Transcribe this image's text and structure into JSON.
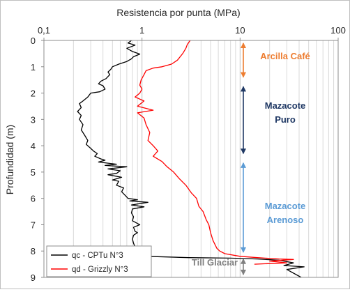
{
  "chart_data": {
    "type": "line",
    "title": "",
    "xlabel": "Resistencia por punta  (MPa)",
    "ylabel": "Profundidad  (m)",
    "x_scale": "log",
    "xlim": [
      0.1,
      100
    ],
    "ylim": [
      9,
      0
    ],
    "x_ticks": [
      "0,1",
      "1",
      "10",
      "100"
    ],
    "y_ticks": [
      "0",
      "1",
      "2",
      "3",
      "4",
      "5",
      "6",
      "7",
      "8",
      "9"
    ],
    "grid": {
      "x_minor_log": true,
      "y": false
    },
    "legend": {
      "placement": "bottom-left",
      "entries": [
        "qc - CPTu N°3",
        "qd - Grizzly N°3"
      ]
    },
    "series": [
      {
        "name": "qc - CPTu N°3",
        "color": "#000000",
        "points": [
          [
            0.78,
            0.0
          ],
          [
            0.72,
            0.1
          ],
          [
            0.85,
            0.18
          ],
          [
            0.7,
            0.3
          ],
          [
            0.8,
            0.42
          ],
          [
            0.95,
            0.52
          ],
          [
            0.82,
            0.62
          ],
          [
            0.78,
            0.7
          ],
          [
            0.7,
            0.8
          ],
          [
            0.58,
            0.9
          ],
          [
            0.5,
            1.0
          ],
          [
            0.48,
            1.1
          ],
          [
            0.45,
            1.2
          ],
          [
            0.47,
            1.3
          ],
          [
            0.43,
            1.45
          ],
          [
            0.38,
            1.55
          ],
          [
            0.36,
            1.65
          ],
          [
            0.4,
            1.72
          ],
          [
            0.42,
            1.85
          ],
          [
            0.37,
            1.95
          ],
          [
            0.3,
            2.0
          ],
          [
            0.28,
            2.15
          ],
          [
            0.25,
            2.3
          ],
          [
            0.23,
            2.4
          ],
          [
            0.24,
            2.55
          ],
          [
            0.22,
            2.7
          ],
          [
            0.24,
            2.85
          ],
          [
            0.23,
            3.0
          ],
          [
            0.25,
            3.2
          ],
          [
            0.24,
            3.4
          ],
          [
            0.26,
            3.6
          ],
          [
            0.28,
            3.8
          ],
          [
            0.27,
            3.95
          ],
          [
            0.3,
            4.1
          ],
          [
            0.32,
            4.2
          ],
          [
            0.35,
            4.3
          ],
          [
            0.33,
            4.4
          ],
          [
            0.38,
            4.5
          ],
          [
            0.42,
            4.55
          ],
          [
            0.36,
            4.62
          ],
          [
            0.55,
            4.7
          ],
          [
            0.42,
            4.75
          ],
          [
            0.7,
            4.8
          ],
          [
            0.45,
            4.88
          ],
          [
            0.6,
            4.95
          ],
          [
            0.55,
            5.05
          ],
          [
            0.45,
            5.1
          ],
          [
            0.62,
            5.2
          ],
          [
            0.5,
            5.3
          ],
          [
            0.58,
            5.35
          ],
          [
            0.55,
            5.5
          ],
          [
            0.65,
            5.6
          ],
          [
            0.62,
            5.75
          ],
          [
            0.68,
            5.9
          ],
          [
            0.72,
            6.0
          ],
          [
            0.9,
            6.05
          ],
          [
            0.75,
            6.1
          ],
          [
            1.15,
            6.15
          ],
          [
            0.78,
            6.25
          ],
          [
            1.05,
            6.32
          ],
          [
            0.8,
            6.4
          ],
          [
            0.78,
            6.55
          ],
          [
            0.82,
            6.7
          ],
          [
            0.8,
            6.85
          ],
          [
            0.95,
            7.0
          ],
          [
            0.82,
            7.1
          ],
          [
            0.85,
            7.25
          ],
          [
            0.9,
            7.3
          ],
          [
            0.82,
            7.4
          ],
          [
            0.8,
            7.55
          ],
          [
            0.82,
            7.7
          ],
          [
            0.85,
            7.85
          ],
          [
            0.88,
            8.0
          ],
          [
            0.95,
            8.1
          ],
          [
            1.1,
            8.2
          ],
          [
            3.0,
            8.25
          ],
          [
            8.0,
            8.27
          ],
          [
            15.0,
            8.3
          ],
          [
            25.0,
            8.35
          ],
          [
            35.0,
            8.45
          ],
          [
            28.0,
            8.55
          ],
          [
            45.0,
            8.6
          ],
          [
            30.0,
            8.7
          ],
          [
            42.0,
            9.0
          ]
        ]
      },
      {
        "name": "qd - Grizzly N°3",
        "color": "#ff0000",
        "points": [
          [
            3.1,
            0.0
          ],
          [
            2.9,
            0.15
          ],
          [
            2.8,
            0.3
          ],
          [
            2.6,
            0.5
          ],
          [
            2.3,
            0.75
          ],
          [
            2.0,
            0.9
          ],
          [
            1.6,
            1.0
          ],
          [
            1.3,
            1.05
          ],
          [
            1.1,
            1.15
          ],
          [
            1.05,
            1.3
          ],
          [
            0.98,
            1.5
          ],
          [
            0.95,
            1.7
          ],
          [
            1.0,
            1.85
          ],
          [
            0.95,
            2.0
          ],
          [
            0.85,
            2.15
          ],
          [
            1.05,
            2.3
          ],
          [
            0.9,
            2.5
          ],
          [
            1.3,
            2.65
          ],
          [
            0.9,
            2.75
          ],
          [
            1.05,
            2.95
          ],
          [
            1.1,
            3.2
          ],
          [
            1.2,
            3.5
          ],
          [
            1.15,
            3.8
          ],
          [
            1.3,
            4.0
          ],
          [
            1.45,
            4.2
          ],
          [
            1.3,
            4.4
          ],
          [
            1.6,
            4.6
          ],
          [
            1.8,
            4.8
          ],
          [
            2.1,
            5.0
          ],
          [
            2.4,
            5.25
          ],
          [
            2.8,
            5.5
          ],
          [
            3.2,
            5.8
          ],
          [
            3.6,
            6.0
          ],
          [
            3.8,
            6.3
          ],
          [
            4.2,
            6.5
          ],
          [
            4.5,
            6.8
          ],
          [
            4.8,
            7.0
          ],
          [
            5.0,
            7.3
          ],
          [
            5.3,
            7.6
          ],
          [
            5.8,
            7.9
          ],
          [
            6.2,
            8.0
          ],
          [
            7.0,
            8.1
          ],
          [
            10.0,
            8.2
          ],
          [
            15.0,
            8.25
          ],
          [
            25.0,
            8.3
          ],
          [
            35.0,
            8.32
          ],
          [
            20.0,
            8.38
          ],
          [
            30.0,
            8.45
          ],
          [
            14.0,
            8.5
          ]
        ]
      }
    ],
    "annotations": [
      {
        "text": "Arcilla Café",
        "color": "#ed7d31",
        "arrow_from": 0.0,
        "arrow_to": 1.5
      },
      {
        "text": "Mazacote\nPuro",
        "color": "#1f3864",
        "arrow_from": 1.65,
        "arrow_to": 4.4
      },
      {
        "text": "Mazacote\nArenoso",
        "color": "#5b9bd5",
        "arrow_from": 4.55,
        "arrow_to": 8.15
      },
      {
        "text": "Till Glaciar",
        "color": "#808080",
        "arrow_from": 8.2,
        "arrow_to": 9.0
      }
    ]
  }
}
